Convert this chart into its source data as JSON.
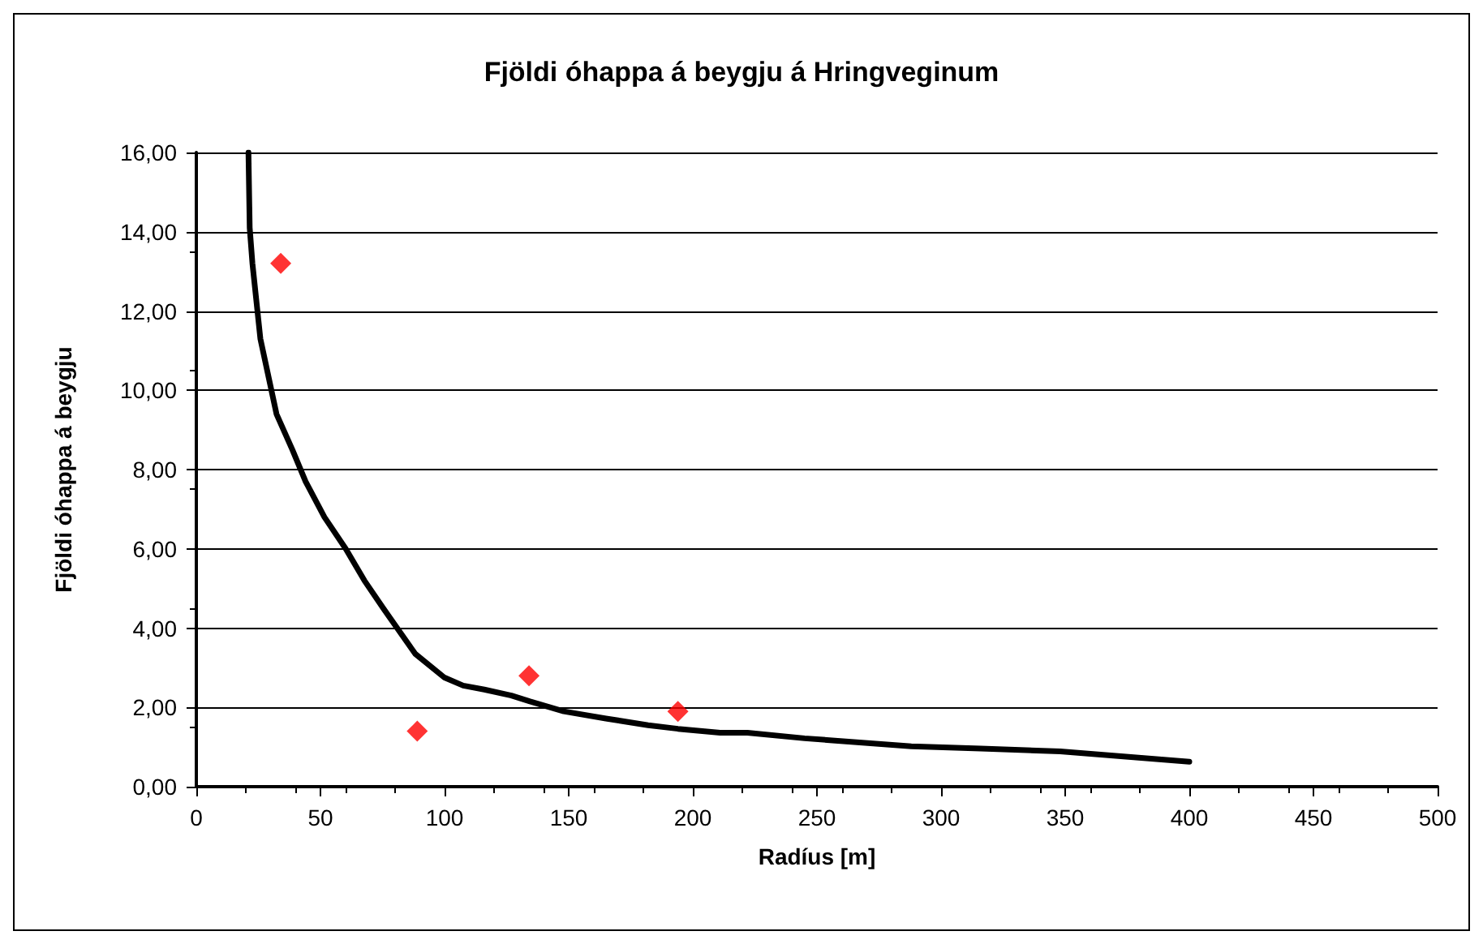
{
  "chart_data": {
    "type": "scatter",
    "title": "Fjöldi óhappa á beygju á Hringveginum",
    "xlabel": "Radíus [m]",
    "ylabel": "Fjöldi óhappa á beygju",
    "xlim": [
      0,
      500
    ],
    "xticks": [
      0,
      50,
      100,
      150,
      200,
      250,
      300,
      350,
      400,
      450,
      500
    ],
    "ylim": [
      0,
      16
    ],
    "yticks": [
      {
        "value": 0,
        "label": "0,00"
      },
      {
        "value": 2,
        "label": "2,00"
      },
      {
        "value": 4,
        "label": "4,00"
      },
      {
        "value": 6,
        "label": "6,00"
      },
      {
        "value": 8,
        "label": "8,00"
      },
      {
        "value": 10,
        "label": "10,00"
      },
      {
        "value": 12,
        "label": "12,00"
      },
      {
        "value": 14,
        "label": "14,00"
      },
      {
        "value": 16,
        "label": "16,00"
      }
    ],
    "grid": "y",
    "series": [
      {
        "type": "line",
        "color": "#000000",
        "marker": "none",
        "line_style": "solid",
        "x": [
          21,
          21.5,
          22.6,
          25.8,
          32.3,
          38.7,
          44,
          51.6,
          60.2,
          67.7,
          75.3,
          88.2,
          100,
          107.5,
          116,
          126.9,
          134.4,
          148,
          165,
          182,
          194,
          211,
          222,
          245,
          288,
          316,
          348,
          400
        ],
        "values": [
          16,
          14.1,
          13.2,
          11.3,
          9.4,
          8.5,
          7.7,
          6.8,
          6.0,
          5.2,
          4.5,
          3.35,
          2.75,
          2.55,
          2.45,
          2.3,
          2.15,
          1.9,
          1.72,
          1.55,
          1.46,
          1.36,
          1.36,
          1.22,
          1.02,
          0.96,
          0.89,
          0.63
        ]
      },
      {
        "color": "#ff0000",
        "marker": "diamond",
        "x": [
          34,
          89,
          134,
          194
        ],
        "values": [
          13.2,
          1.4,
          2.8,
          1.9
        ]
      }
    ]
  }
}
